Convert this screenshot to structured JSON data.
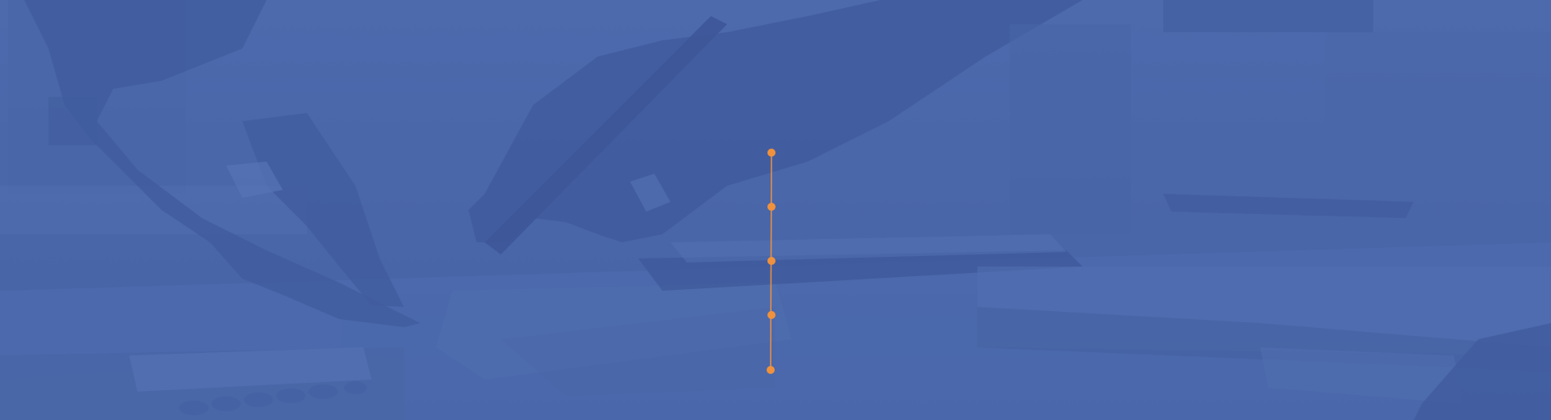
{
  "hero": {
    "background_color": "#4a66a8",
    "overlay_color": "#4864aa",
    "image_subject": "hands-with-pen-over-documents"
  },
  "timeline": {
    "accent_color": "#f0913d",
    "node_count": 5,
    "nodes": [
      {
        "id": "node-1"
      },
      {
        "id": "node-2"
      },
      {
        "id": "node-3"
      },
      {
        "id": "node-4"
      },
      {
        "id": "node-5"
      }
    ]
  }
}
